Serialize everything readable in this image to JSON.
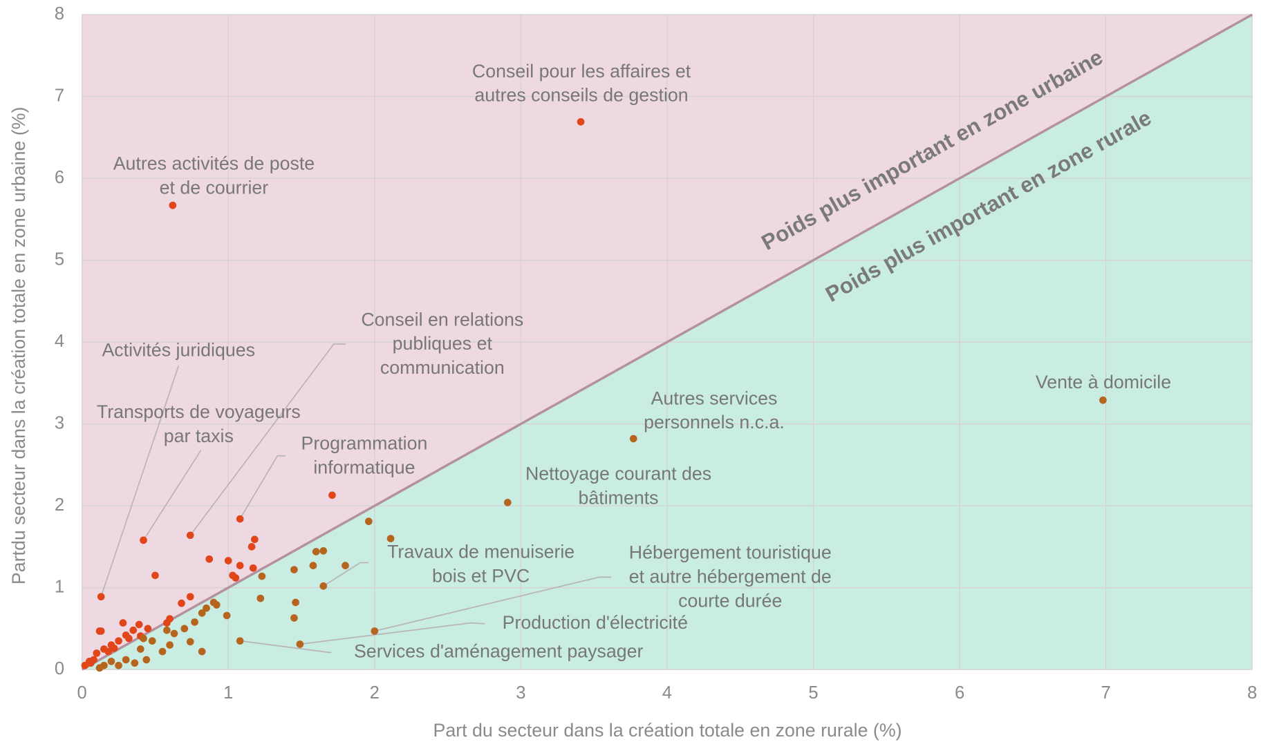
{
  "chart_data": {
    "type": "scatter",
    "xlabel": "Part du secteur dans la création totale en zone rurale (%)",
    "ylabel": "Partdu secteur dans la création totale en zone urbaine (%)",
    "xlim": [
      0,
      8
    ],
    "ylim": [
      0,
      8
    ],
    "xticks": [
      0,
      1,
      2,
      3,
      4,
      5,
      6,
      7,
      8
    ],
    "yticks": [
      0,
      1,
      2,
      3,
      4,
      5,
      6,
      7,
      8
    ],
    "grid": true,
    "region_labels": [
      "Poids plus important en zone urbaine",
      "Poids plus important en zone rurale"
    ],
    "region_colors": [
      "#eed9e3",
      "#c9ede3"
    ],
    "region_text_colors": [
      "#b02a62",
      "#16a37a"
    ],
    "series": [
      {
        "color": "#e0461a",
        "x": [
          0.12,
          0.13,
          0.28,
          0.39,
          0.5,
          0.58,
          0.68,
          0.74,
          0.87,
          1.0,
          1.05,
          1.08,
          1.16,
          1.18,
          1.17,
          1.03,
          1.71,
          0.3,
          0.35,
          0.4,
          0.2,
          0.15,
          0.1,
          0.05,
          0.25,
          0.45,
          0.6,
          0.18,
          0.08,
          0.22,
          0.32,
          0.02,
          0.06
        ],
        "values": [
          0.47,
          0.47,
          0.57,
          0.55,
          1.15,
          0.57,
          0.81,
          0.89,
          1.35,
          1.33,
          1.12,
          1.27,
          1.5,
          1.59,
          1.24,
          1.15,
          2.13,
          0.42,
          0.48,
          0.41,
          0.3,
          0.25,
          0.2,
          0.1,
          0.35,
          0.5,
          0.62,
          0.22,
          0.12,
          0.26,
          0.38,
          0.05,
          0.08
        ]
      },
      {
        "color": "#b5651e",
        "x": [
          1.96,
          2.11,
          1.65,
          1.6,
          1.8,
          1.45,
          1.58,
          1.23,
          1.22,
          1.46,
          1.45,
          0.9,
          0.92,
          0.82,
          0.82,
          0.74,
          0.63,
          0.58,
          0.55,
          0.48,
          0.42,
          0.44,
          0.36,
          0.3,
          0.25,
          0.15,
          0.7,
          0.77,
          0.85,
          0.99,
          0.4,
          0.2,
          0.12,
          0.6
        ],
        "values": [
          1.81,
          1.6,
          1.45,
          1.44,
          1.27,
          1.22,
          1.27,
          1.14,
          0.87,
          0.82,
          0.63,
          0.82,
          0.79,
          0.69,
          0.22,
          0.34,
          0.44,
          0.48,
          0.22,
          0.35,
          0.38,
          0.12,
          0.08,
          0.12,
          0.05,
          0.05,
          0.5,
          0.58,
          0.75,
          0.66,
          0.25,
          0.1,
          0.02,
          0.3
        ]
      }
    ],
    "annotations": [
      {
        "text": [
          "Conseil pour les affaires et",
          "autres conseils de gestion"
        ],
        "x": 3.41,
        "y": 6.69
      },
      {
        "text": [
          "Autres activités de poste",
          "et de courrier"
        ],
        "x": 0.62,
        "y": 5.67
      },
      {
        "text": [
          "Activités juridiques"
        ],
        "x": 0.13,
        "y": 0.89
      },
      {
        "text": [
          "Transports de voyageurs",
          "par taxis"
        ],
        "x": 0.42,
        "y": 1.58
      },
      {
        "text": [
          "Conseil en relations",
          "publiques et",
          "communication"
        ],
        "x": 0.74,
        "y": 1.64
      },
      {
        "text": [
          "Programmation",
          "informatique"
        ],
        "x": 1.08,
        "y": 1.84
      },
      {
        "text": [
          "Vente à domicile"
        ],
        "x": 6.98,
        "y": 3.29
      },
      {
        "text": [
          "Autres services",
          "personnels n.c.a."
        ],
        "x": 3.77,
        "y": 2.82
      },
      {
        "text": [
          "Nettoyage courant des",
          "bâtiments"
        ],
        "x": 2.91,
        "y": 2.04
      },
      {
        "text": [
          "Travaux de menuiserie",
          "bois et PVC"
        ],
        "x": 1.65,
        "y": 1.02
      },
      {
        "text": [
          "Hébergement touristique",
          "et autre hébergement de",
          "courte durée"
        ],
        "x": 2.0,
        "y": 0.47
      },
      {
        "text": [
          "Production d'électricité"
        ],
        "x": 1.49,
        "y": 0.31
      },
      {
        "text": [
          "Services d'aménagement paysager"
        ],
        "x": 1.08,
        "y": 0.35
      }
    ]
  }
}
